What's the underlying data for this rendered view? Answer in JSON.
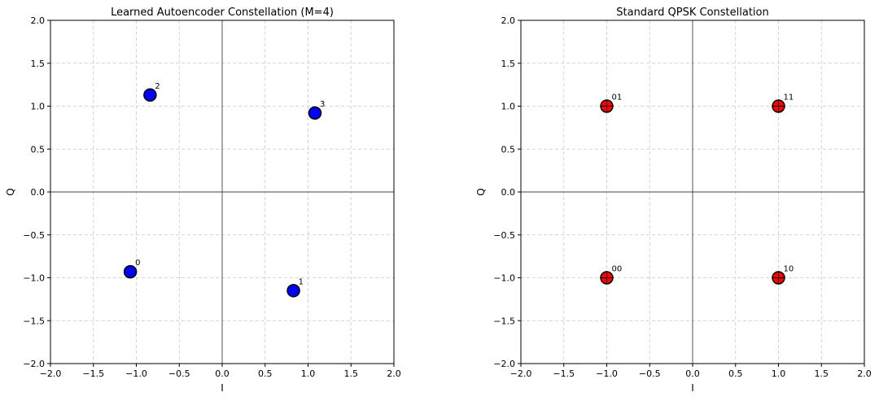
{
  "chart_data": [
    {
      "type": "scatter",
      "title": "Learned Autoencoder Constellation (M=4)",
      "xlabel": "I",
      "ylabel": "Q",
      "xlim": [
        -2.0,
        2.0
      ],
      "ylim": [
        -2.0,
        2.0
      ],
      "xticks": [
        "−2.0",
        "−1.5",
        "−1.0",
        "−0.5",
        "0.0",
        "0.5",
        "1.0",
        "1.5",
        "2.0"
      ],
      "yticks": [
        "−2.0",
        "−1.5",
        "−1.0",
        "−0.5",
        "0.0",
        "0.5",
        "1.0",
        "1.5",
        "2.0"
      ],
      "grid": true,
      "marker_color": "#0000ff",
      "points": [
        {
          "x": -1.07,
          "y": -0.93,
          "label": "0"
        },
        {
          "x": 0.83,
          "y": -1.15,
          "label": "1"
        },
        {
          "x": -0.84,
          "y": 1.13,
          "label": "2"
        },
        {
          "x": 1.08,
          "y": 0.92,
          "label": "3"
        }
      ]
    },
    {
      "type": "scatter",
      "title": "Standard QPSK Constellation",
      "xlabel": "I",
      "ylabel": "Q",
      "xlim": [
        -2.0,
        2.0
      ],
      "ylim": [
        -2.0,
        2.0
      ],
      "xticks": [
        "−2.0",
        "−1.5",
        "−1.0",
        "−0.5",
        "0.0",
        "0.5",
        "1.0",
        "1.5",
        "2.0"
      ],
      "yticks": [
        "−2.0",
        "−1.5",
        "−1.0",
        "−0.5",
        "0.0",
        "0.5",
        "1.0",
        "1.5",
        "2.0"
      ],
      "grid": true,
      "marker_color": "#ff0000",
      "points": [
        {
          "x": -1.0,
          "y": 1.0,
          "label": "01"
        },
        {
          "x": 1.0,
          "y": 1.0,
          "label": "11"
        },
        {
          "x": -1.0,
          "y": -1.0,
          "label": "00"
        },
        {
          "x": 1.0,
          "y": -1.0,
          "label": "10"
        }
      ]
    }
  ]
}
